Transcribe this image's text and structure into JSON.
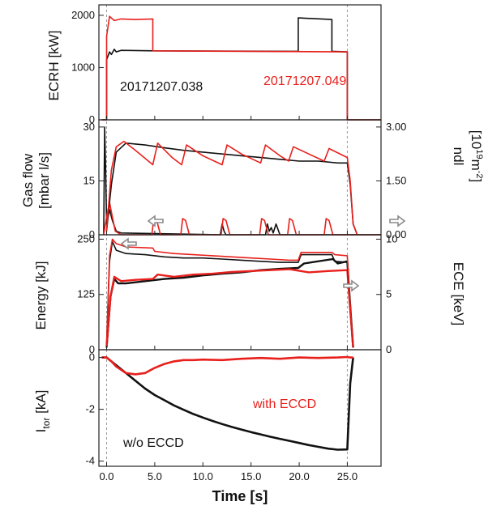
{
  "colors": {
    "black_shot": "#111111",
    "red_shot": "#e8201c",
    "arrow": "#8a8a8a"
  },
  "figure": {
    "xlabel": "Time [s]",
    "x_ticks": [
      "0.0",
      "5.0",
      "10.0",
      "15.0",
      "20.0",
      "25.0"
    ]
  },
  "chart_data": [
    {
      "type": "line",
      "ylabel": "ECRH [kW]",
      "xlim": [
        -0.8,
        28.5
      ],
      "ylim": [
        0,
        2200
      ],
      "y_ticks": [
        "0",
        "1000",
        "2000"
      ],
      "grid": false,
      "annotations": {
        "black": "20171207.038",
        "red": "20171207.049"
      },
      "series": [
        {
          "color": "black",
          "x": [
            -0.5,
            0.0,
            0.0,
            0.3,
            0.5,
            0.8,
            1.0,
            1.5,
            5.0,
            19.9,
            19.9,
            23.4,
            23.4,
            25.0,
            25.0,
            28.5
          ],
          "y": [
            0,
            0,
            1150,
            1300,
            1250,
            1350,
            1300,
            1330,
            1320,
            1310,
            1950,
            1920,
            1310,
            1300,
            0,
            0
          ]
        },
        {
          "color": "red",
          "x": [
            -0.5,
            0.0,
            0.0,
            0.3,
            0.8,
            1.5,
            3.0,
            4.8,
            4.8,
            25.0,
            25.0,
            28.5
          ],
          "y": [
            0,
            0,
            1600,
            1980,
            1900,
            1930,
            1920,
            1930,
            1320,
            1300,
            0,
            0
          ]
        }
      ]
    },
    {
      "type": "line",
      "ylabel": "Gas flow [mbar l/s]",
      "ylabel2": "ndl [10^19 m^-2]",
      "ylabel2_main": "ndl",
      "ylabel2_unit": "[10",
      "ylabel2_exp1": "19",
      "ylabel2_m": "m",
      "ylabel2_exp2": "-2",
      "ylabel2_close": "]",
      "xlim": [
        -0.8,
        28.5
      ],
      "ylim": [
        0,
        32
      ],
      "y_ticks": [
        "0",
        "15",
        "30"
      ],
      "y2_ticks": [
        "0.00",
        "1.50",
        "3.00"
      ],
      "y2lim": [
        0,
        3.2
      ],
      "grid": false,
      "series": [
        {
          "name": "gas",
          "color": "black",
          "x": [
            -0.3,
            -0.2,
            -0.1,
            0.0,
            0.3,
            0.6,
            1.0,
            1.5,
            11.8,
            12.0,
            12.2,
            12.4,
            16.5,
            16.7,
            16.9,
            17.1,
            17.3,
            17.6,
            18.0,
            28.5
          ],
          "y": [
            0,
            30,
            18,
            3,
            7,
            4,
            1,
            0.5,
            0,
            3,
            1,
            0,
            0,
            3,
            1,
            2,
            0.5,
            3,
            0,
            0
          ]
        },
        {
          "name": "gas",
          "color": "red",
          "x": [
            -0.3,
            0.0,
            0.3,
            0.6,
            0.9,
            1.5,
            4.7,
            4.9,
            5.2,
            5.6,
            7.7,
            7.9,
            8.2,
            8.6,
            11.9,
            12.1,
            12.4,
            12.8,
            15.9,
            16.1,
            16.4,
            16.8,
            18.8,
            19.0,
            19.3,
            19.7,
            22.6,
            22.8,
            23.1,
            23.5,
            28.5
          ],
          "y": [
            0,
            5,
            9,
            5,
            1,
            0,
            0,
            4.5,
            4,
            0,
            0,
            4.5,
            4,
            0,
            0,
            4.5,
            4,
            0,
            0,
            4.5,
            4,
            0,
            0,
            4.5,
            4,
            0,
            0,
            4.5,
            4,
            0,
            0
          ]
        },
        {
          "name": "ndl",
          "axis": "right",
          "color": "black",
          "x": [
            0.0,
            0.5,
            1.0,
            2.0,
            4.0,
            6.0,
            8.0,
            10.0,
            12.0,
            14.0,
            16.0,
            18.0,
            20.0,
            22.0,
            24.0,
            25.0,
            25.3,
            25.6,
            26.0
          ],
          "y": [
            0.1,
            1.4,
            2.3,
            2.55,
            2.5,
            2.42,
            2.35,
            2.3,
            2.25,
            2.2,
            2.15,
            2.1,
            2.05,
            2.05,
            2.0,
            2.0,
            1.4,
            0.3,
            0.02
          ]
        },
        {
          "name": "ndl",
          "axis": "right",
          "color": "red",
          "x": [
            0.0,
            0.5,
            1.0,
            1.8,
            3.0,
            4.8,
            5.3,
            6.8,
            7.8,
            8.3,
            10.0,
            12.0,
            12.5,
            14.0,
            16.0,
            16.5,
            18.0,
            18.9,
            19.4,
            21.0,
            22.6,
            23.1,
            25.0,
            25.3,
            25.6,
            26.0
          ],
          "y": [
            0.1,
            1.8,
            2.45,
            2.6,
            2.35,
            1.95,
            2.55,
            2.15,
            1.95,
            2.5,
            2.2,
            1.95,
            2.5,
            2.25,
            2.0,
            2.5,
            2.2,
            2.05,
            2.45,
            2.25,
            2.05,
            2.4,
            2.15,
            1.5,
            0.3,
            0.02
          ]
        }
      ]
    },
    {
      "type": "line",
      "ylabel": "Energy [kJ]",
      "ylabel2": "ECE [keV]",
      "xlim": [
        -0.8,
        28.5
      ],
      "ylim": [
        0,
        260
      ],
      "y_ticks": [
        "0",
        "125",
        "250"
      ],
      "y2_ticks": [
        "0",
        "5",
        "10"
      ],
      "y2lim": [
        0,
        10.4
      ],
      "grid": false,
      "series": [
        {
          "name": "energy",
          "color": "black",
          "x": [
            0.0,
            0.4,
            0.8,
            1.2,
            2.0,
            4.0,
            6.0,
            8.0,
            10.0,
            12.0,
            14.0,
            16.0,
            18.0,
            19.9,
            20.5,
            23.5,
            24.0,
            25.0,
            25.3,
            25.6
          ],
          "y": [
            5,
            120,
            160,
            150,
            150,
            155,
            160,
            163,
            168,
            172,
            175,
            180,
            183,
            185,
            195,
            205,
            195,
            200,
            100,
            5
          ]
        },
        {
          "name": "energy",
          "color": "red",
          "x": [
            0.0,
            0.4,
            0.8,
            1.5,
            3.0,
            4.8,
            5.3,
            7.0,
            9.0,
            11.0,
            13.0,
            15.0,
            17.0,
            19.0,
            21.0,
            23.0,
            25.0,
            25.3,
            25.6
          ],
          "y": [
            5,
            120,
            165,
            155,
            158,
            160,
            170,
            165,
            170,
            172,
            176,
            178,
            180,
            182,
            175,
            178,
            180,
            90,
            5
          ]
        },
        {
          "name": "ece",
          "axis": "right",
          "color": "black",
          "x": [
            0.0,
            0.3,
            0.6,
            1.0,
            2.0,
            4.0,
            6.0,
            8.0,
            10.0,
            12.0,
            14.0,
            16.0,
            18.0,
            19.9,
            20.2,
            23.4,
            23.7,
            25.0,
            25.3,
            25.6
          ],
          "y": [
            0.5,
            8.0,
            9.8,
            9.0,
            8.7,
            8.6,
            8.4,
            8.3,
            8.3,
            8.2,
            8.1,
            8.0,
            7.9,
            7.9,
            8.6,
            8.6,
            8.0,
            7.9,
            4.0,
            0.2
          ]
        },
        {
          "name": "ece",
          "axis": "right",
          "color": "red",
          "x": [
            0.0,
            0.3,
            0.6,
            1.0,
            2.0,
            4.8,
            5.0,
            7.0,
            9.0,
            11.0,
            13.0,
            15.0,
            17.0,
            19.0,
            19.9,
            20.2,
            23.4,
            23.7,
            25.0,
            25.3,
            25.6
          ],
          "y": [
            0.5,
            8.5,
            10.0,
            9.6,
            9.3,
            9.2,
            8.9,
            8.7,
            8.6,
            8.5,
            8.4,
            8.3,
            8.2,
            8.1,
            8.1,
            8.8,
            8.8,
            8.6,
            8.5,
            4.0,
            0.2
          ]
        }
      ]
    },
    {
      "type": "line",
      "ylabel": "I_tor [kA]",
      "ylabel_main": "I",
      "ylabel_sub": "tor",
      "ylabel_unit": "[kA]",
      "xlim": [
        -0.8,
        28.5
      ],
      "ylim": [
        -4.2,
        0.3
      ],
      "y_ticks": [
        "0",
        "-2",
        "-4"
      ],
      "grid": false,
      "annotations": {
        "red": "with ECCD",
        "black": "w/o ECCD"
      },
      "series": [
        {
          "name": "w/o ECCD",
          "color": "black",
          "x": [
            -0.5,
            0.0,
            1.0,
            2.0,
            3.0,
            4.0,
            5.0,
            6.0,
            7.0,
            8.0,
            9.0,
            10.0,
            11.0,
            12.0,
            13.0,
            14.0,
            15.0,
            16.0,
            17.0,
            18.0,
            19.0,
            20.0,
            21.0,
            22.0,
            23.0,
            24.0,
            25.0,
            25.3,
            25.6
          ],
          "y": [
            0,
            0,
            -0.3,
            -0.6,
            -0.9,
            -1.2,
            -1.45,
            -1.65,
            -1.85,
            -2.02,
            -2.18,
            -2.32,
            -2.45,
            -2.57,
            -2.68,
            -2.78,
            -2.88,
            -2.97,
            -3.06,
            -3.14,
            -3.22,
            -3.3,
            -3.38,
            -3.45,
            -3.52,
            -3.56,
            -3.55,
            -1.0,
            0
          ]
        },
        {
          "name": "with ECCD",
          "color": "red",
          "x": [
            -0.5,
            0.0,
            0.5,
            1.0,
            2.0,
            3.0,
            4.0,
            5.0,
            6.0,
            7.0,
            8.0,
            9.0,
            10.0,
            12.0,
            14.0,
            16.0,
            18.0,
            20.0,
            22.0,
            24.0,
            25.0,
            25.3,
            25.6
          ],
          "y": [
            0,
            0,
            -0.15,
            -0.35,
            -0.6,
            -0.65,
            -0.6,
            -0.4,
            -0.25,
            -0.15,
            -0.1,
            -0.1,
            -0.08,
            -0.1,
            -0.05,
            -0.02,
            -0.05,
            0.0,
            -0.02,
            0.0,
            0.02,
            0.0,
            0.0
          ]
        }
      ]
    }
  ]
}
